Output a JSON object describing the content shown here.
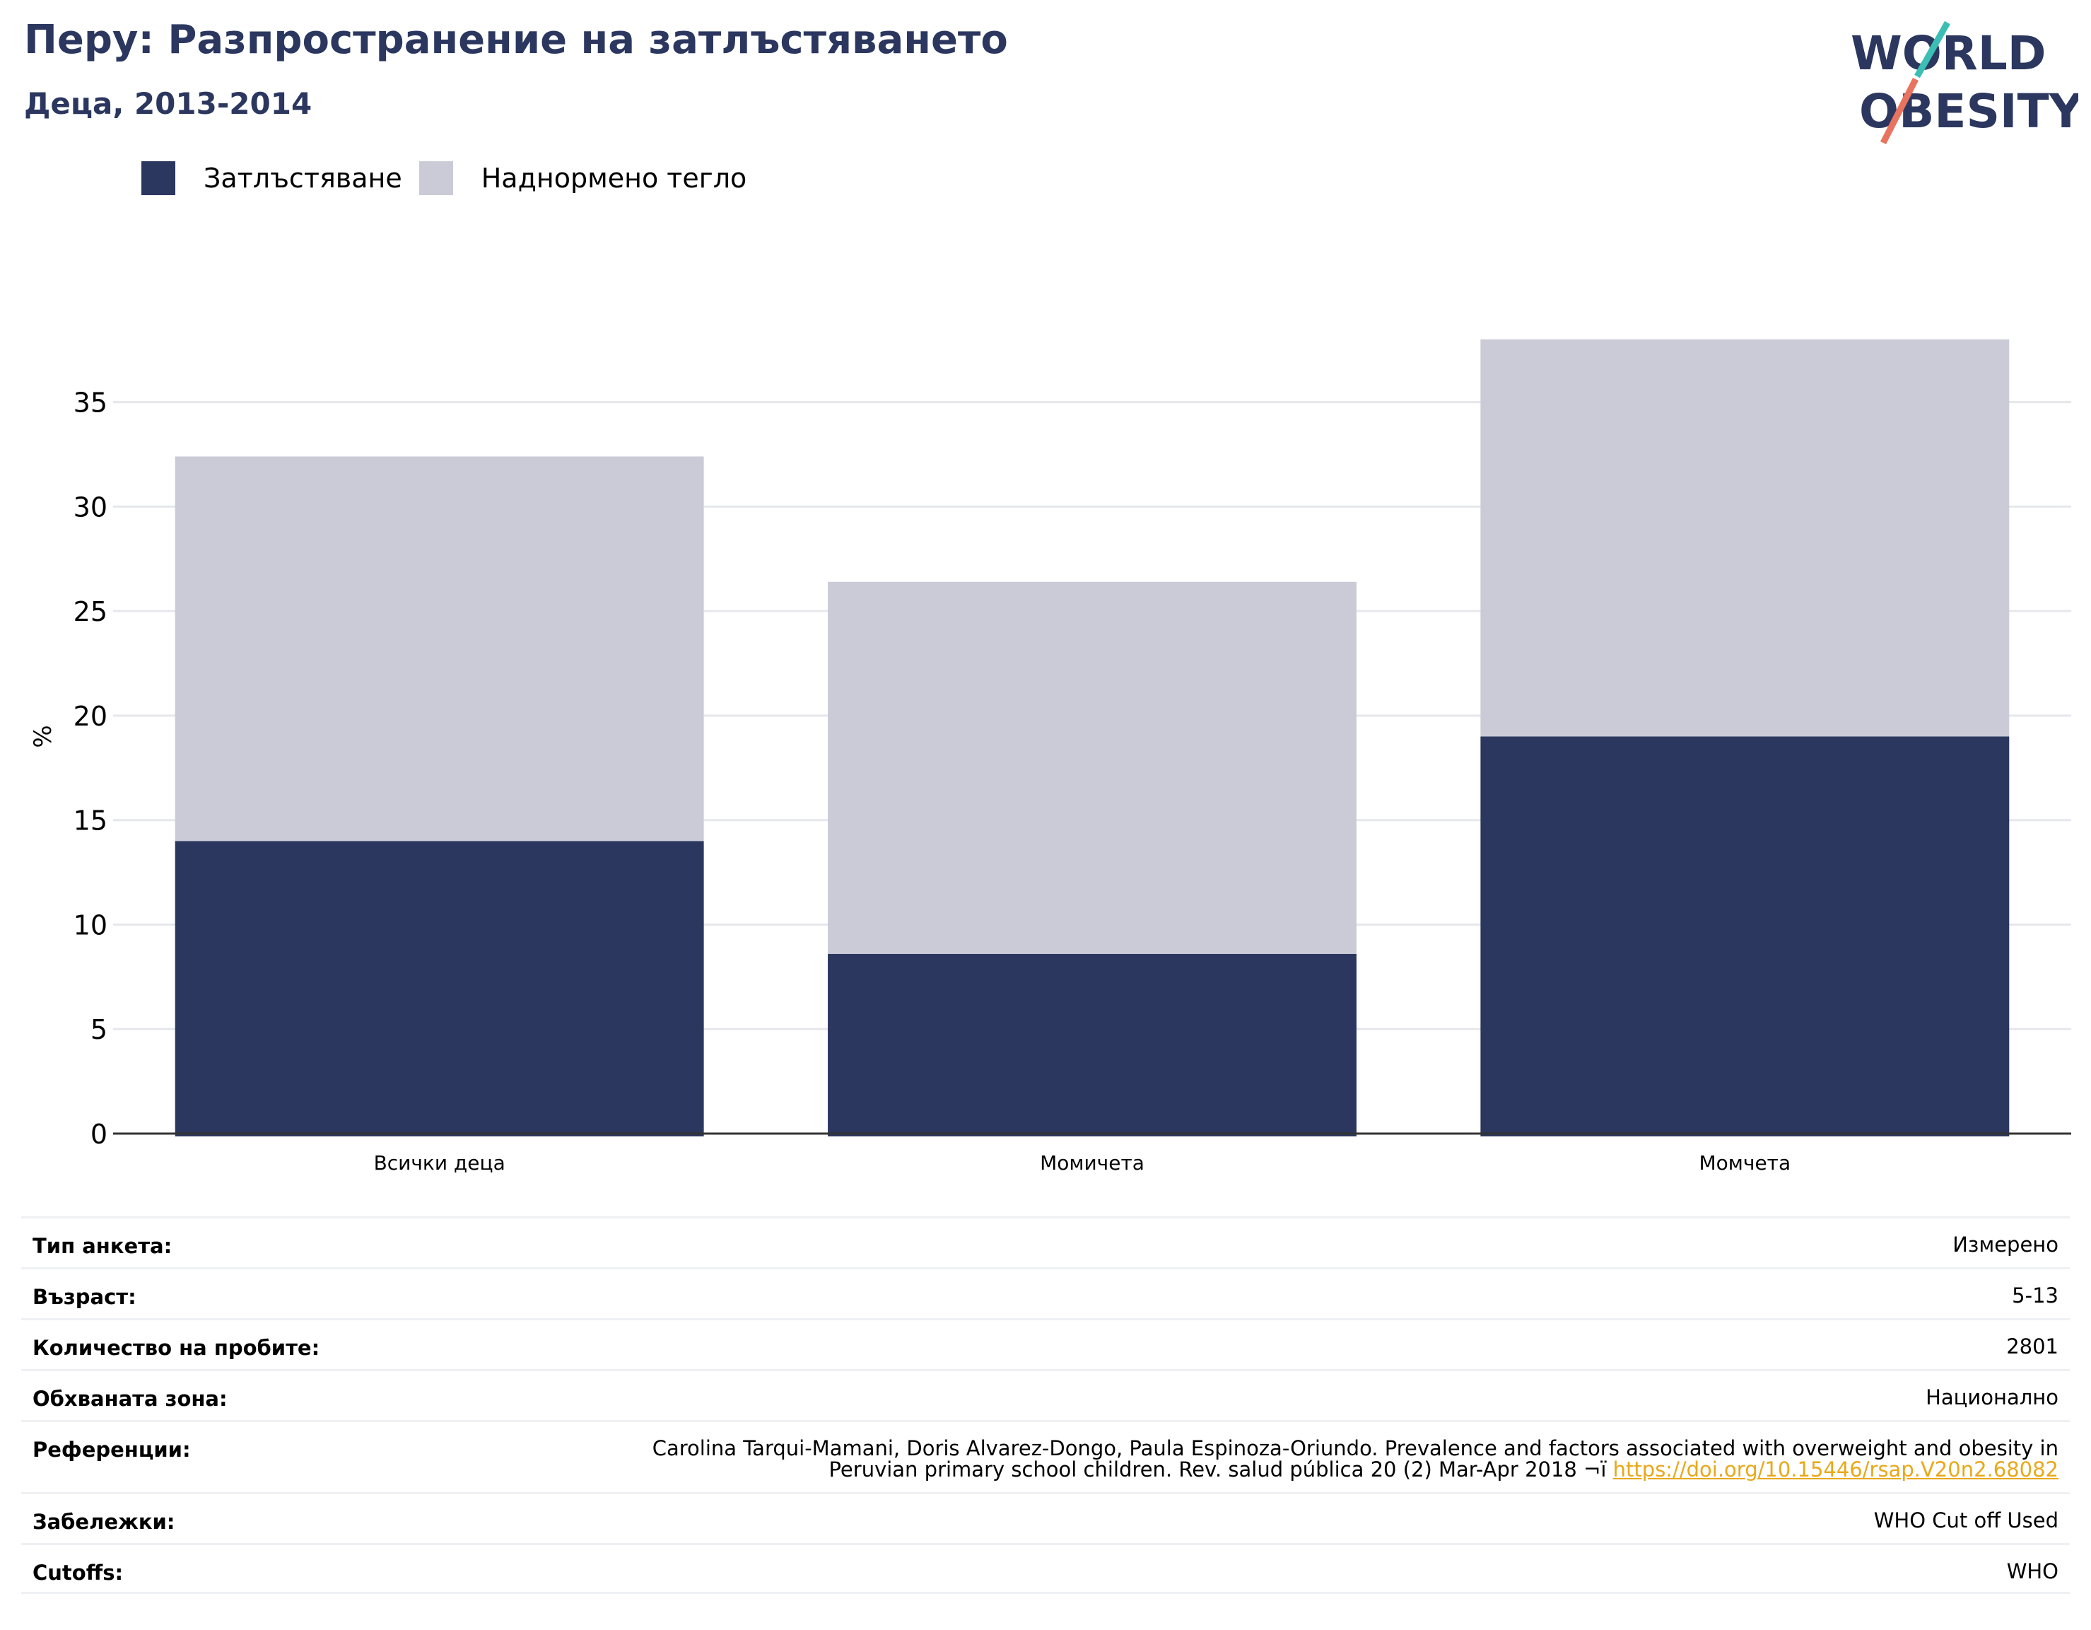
{
  "header": {
    "title": "Перу: Разпространение на затлъстяването",
    "subtitle": "Деца, 2013-2014"
  },
  "logo": {
    "line1": "WORLD",
    "line2": "OBESITY"
  },
  "colors": {
    "obesity": "#2b375f",
    "overweight": "#cacbd7",
    "title": "#2b375f",
    "link": "#e8a81a"
  },
  "chart_data": {
    "type": "bar",
    "stacked": true,
    "categories": [
      "Всички деца",
      "Момичета",
      "Момчета"
    ],
    "series": [
      {
        "name": "Затлъстяване",
        "values": [
          14.0,
          8.6,
          19.0
        ]
      },
      {
        "name": "Наднормено тегло",
        "values": [
          18.4,
          17.8,
          19.0
        ]
      }
    ],
    "ylabel": "%",
    "ylim": [
      0,
      38
    ],
    "yticks": [
      0,
      5,
      10,
      15,
      20,
      25,
      30,
      35
    ],
    "grid": true,
    "legend": "top-left"
  },
  "info": {
    "survey_type_label": "Тип анкета:",
    "survey_type": "Измерено",
    "age_label": "Възраст:",
    "age": "5-13",
    "sample_label": "Количество на пробите:",
    "sample": "2801",
    "area_label": "Обхваната зона:",
    "area": "Национално",
    "references_label": "Референции:",
    "references_line1": "Carolina Tarqui-Mamani, Doris Alvarez-Dongo, Paula Espinoza-Oriundo. Prevalence and factors associated with overweight and obesity in",
    "references_line2": "Peruvian primary school children. Rev. salud pública 20 (2) Mar-Apr 2018 ¬ï ",
    "references_link": "https://doi.org/10.15446/rsap.V20n2.68082",
    "notes_label": "Забележки:",
    "notes": "WHO Cut off Used",
    "cutoffs_label": "Cutoffs:",
    "cutoffs": "WHO"
  }
}
